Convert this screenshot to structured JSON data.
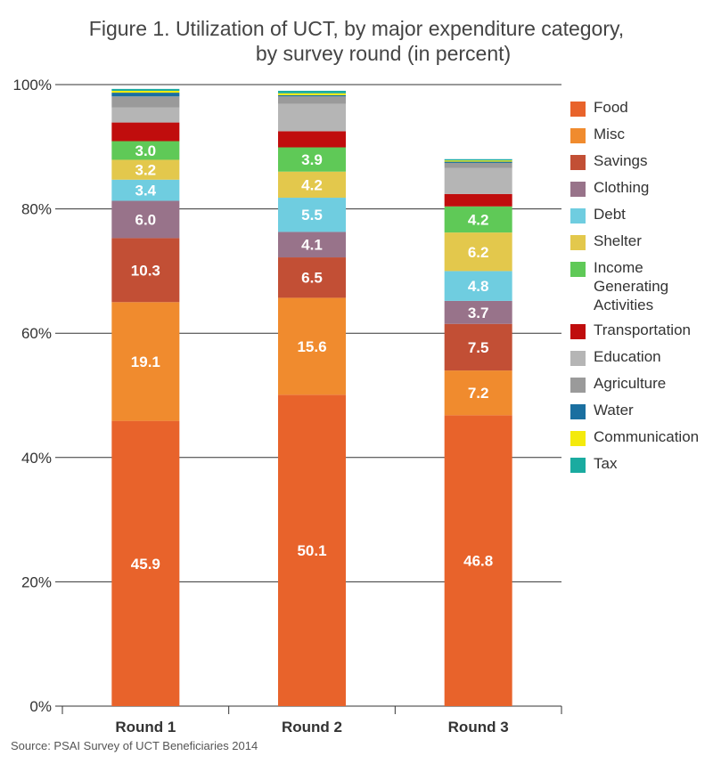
{
  "header": {
    "title_line1": "Figure 1. Utilization of UCT, by major expenditure category,",
    "title_line2": "by survey round (in percent)"
  },
  "source": "Source: PSAI Survey of UCT Beneficiaries 2014",
  "chart_data": {
    "type": "bar",
    "stacked": true,
    "categories": [
      "Round 1",
      "Round 2",
      "Round 3"
    ],
    "ylim": [
      0,
      100
    ],
    "yticks": [
      "0%",
      "20%",
      "40%",
      "60%",
      "80%",
      "100%"
    ],
    "grid": true,
    "legend_position": "right",
    "series": [
      {
        "name": "Food",
        "color": "#e8632b",
        "values": [
          45.9,
          50.1,
          46.8
        ],
        "labels": [
          "45.9",
          "50.1",
          "46.8"
        ]
      },
      {
        "name": "Misc",
        "color": "#f08b2e",
        "values": [
          19.1,
          15.6,
          7.2
        ],
        "labels": [
          "19.1",
          "15.6",
          "7.2"
        ]
      },
      {
        "name": "Savings",
        "color": "#c24f35",
        "values": [
          10.3,
          6.5,
          7.5
        ],
        "labels": [
          "10.3",
          "6.5",
          "7.5"
        ]
      },
      {
        "name": "Clothing",
        "color": "#98738a",
        "values": [
          6.0,
          4.1,
          3.7
        ],
        "labels": [
          "6.0",
          "4.1",
          "3.7"
        ]
      },
      {
        "name": "Debt",
        "color": "#6fcde0",
        "values": [
          3.4,
          5.5,
          4.8
        ],
        "labels": [
          "3.4",
          "5.5",
          "4.8"
        ]
      },
      {
        "name": "Shelter",
        "color": "#e3c84c",
        "values": [
          3.2,
          4.2,
          6.2
        ],
        "labels": [
          "3.2",
          "4.2",
          "6.2"
        ]
      },
      {
        "name": "Income Generating Activities",
        "color": "#5fc957",
        "values": [
          3.0,
          3.9,
          4.2
        ],
        "labels": [
          "3.0",
          "3.9",
          "4.2"
        ]
      },
      {
        "name": "Transportation",
        "color": "#c00d0d",
        "values": [
          3.0,
          2.6,
          2.0
        ],
        "labels": [
          "",
          "",
          ""
        ]
      },
      {
        "name": "Education",
        "color": "#b5b5b5",
        "values": [
          2.4,
          4.4,
          4.2
        ],
        "labels": [
          "",
          "",
          ""
        ]
      },
      {
        "name": "Agriculture",
        "color": "#9a9a9a",
        "values": [
          1.8,
          1.2,
          0.8
        ],
        "labels": [
          "",
          "",
          ""
        ]
      },
      {
        "name": "Water",
        "color": "#1a6fa0",
        "values": [
          0.6,
          0.2,
          0.2
        ],
        "labels": [
          "",
          "",
          ""
        ]
      },
      {
        "name": "Communication",
        "color": "#f4ea0c",
        "values": [
          0.3,
          0.3,
          0.2
        ],
        "labels": [
          "",
          "",
          ""
        ]
      },
      {
        "name": "Tax",
        "color": "#1aaba0",
        "values": [
          0.3,
          0.4,
          0.2
        ],
        "labels": [
          "",
          "",
          ""
        ]
      }
    ]
  }
}
